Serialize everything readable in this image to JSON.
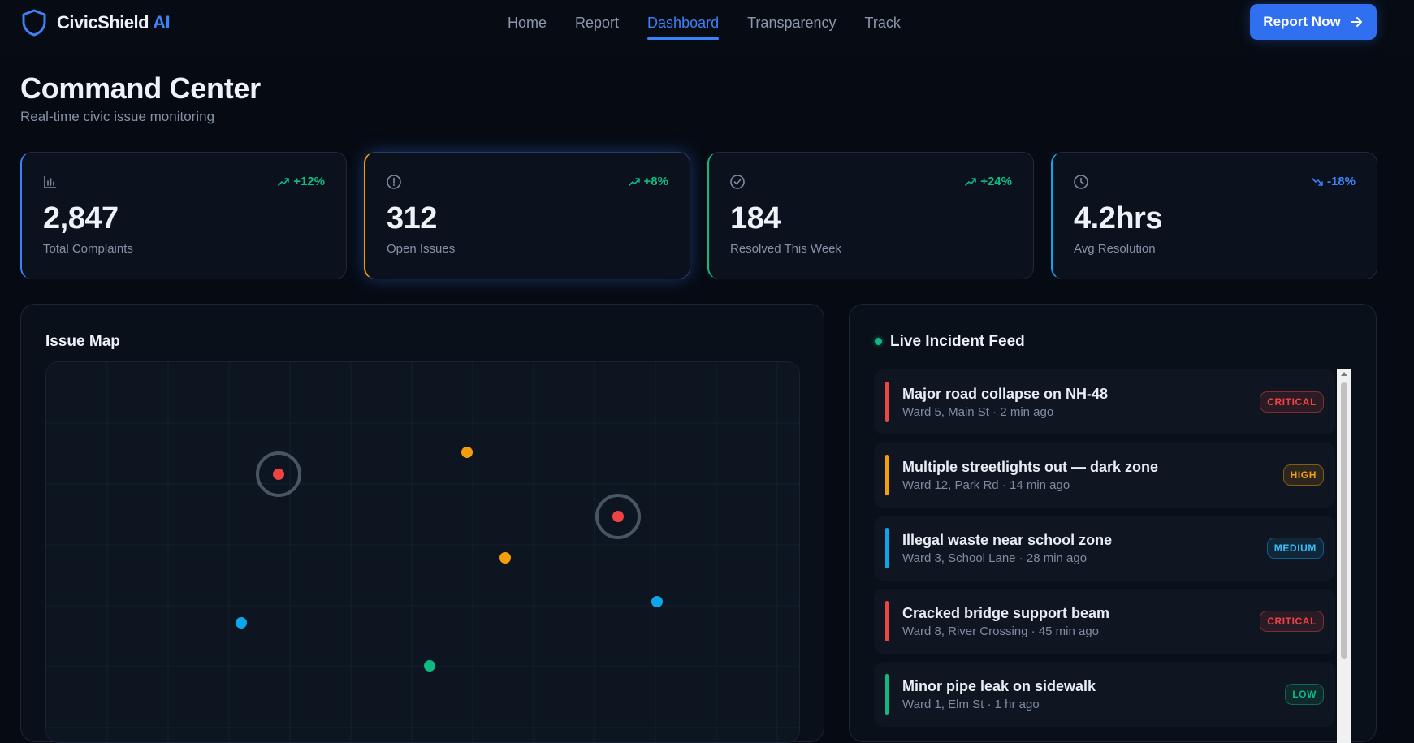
{
  "nav": {
    "brand_name": "CivicShield",
    "brand_suffix": "AI",
    "links": [
      "Home",
      "Report",
      "Dashboard",
      "Transparency",
      "Track"
    ],
    "active_link": "Dashboard",
    "cta_label": "Report Now"
  },
  "header": {
    "title": "Command Center",
    "subtitle": "Real-time civic issue monitoring"
  },
  "stats": [
    {
      "icon": "bar-chart-icon",
      "trend": "+12%",
      "trend_dir": "up",
      "value": "2,847",
      "label": "Total Complaints",
      "accent": "#3b82f6"
    },
    {
      "icon": "alert-circle-icon",
      "trend": "+8%",
      "trend_dir": "up",
      "value": "312",
      "label": "Open Issues",
      "accent": "#f59e0b"
    },
    {
      "icon": "check-circle-icon",
      "trend": "+24%",
      "trend_dir": "up",
      "value": "184",
      "label": "Resolved This Week",
      "accent": "#10b981"
    },
    {
      "icon": "clock-icon",
      "trend": "-18%",
      "trend_dir": "down",
      "value": "4.2hrs",
      "label": "Avg Resolution",
      "accent": "#0ea5e9"
    }
  ],
  "map": {
    "title": "Issue Map",
    "markers": [
      {
        "severity": "critical",
        "color": "#ef4444"
      },
      {
        "severity": "high",
        "color": "#f59e0b"
      },
      {
        "severity": "critical",
        "color": "#ef4444"
      },
      {
        "severity": "high",
        "color": "#f59e0b"
      },
      {
        "severity": "medium",
        "color": "#0ea5e9"
      },
      {
        "severity": "medium",
        "color": "#0ea5e9"
      },
      {
        "severity": "low",
        "color": "#10b981"
      }
    ]
  },
  "feed": {
    "title": "Live Incident Feed",
    "items": [
      {
        "title": "Major road collapse on NH-48",
        "meta": "Ward 5, Main St · 2 min ago",
        "severity": "CRITICAL",
        "color": "#ef4444"
      },
      {
        "title": "Multiple streetlights out — dark zone",
        "meta": "Ward 12, Park Rd · 14 min ago",
        "severity": "HIGH",
        "color": "#f59e0b"
      },
      {
        "title": "Illegal waste near school zone",
        "meta": "Ward 3, School Lane · 28 min ago",
        "severity": "MEDIUM",
        "color": "#0ea5e9"
      },
      {
        "title": "Cracked bridge support beam",
        "meta": "Ward 8, River Crossing · 45 min ago",
        "severity": "CRITICAL",
        "color": "#ef4444"
      },
      {
        "title": "Minor pipe leak on sidewalk",
        "meta": "Ward 1, Elm St · 1 hr ago",
        "severity": "LOW",
        "color": "#10b981"
      }
    ]
  }
}
